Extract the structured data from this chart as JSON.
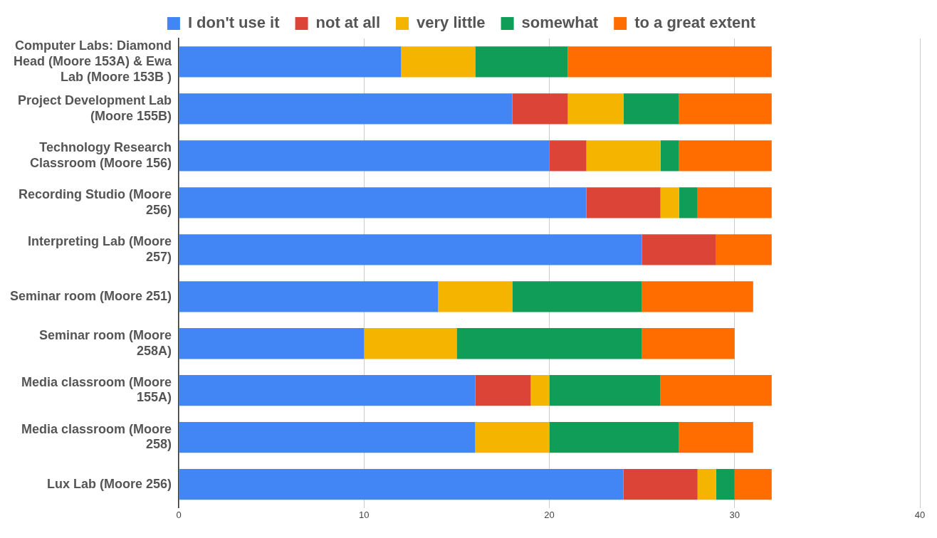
{
  "chart_data": {
    "type": "bar",
    "orientation": "horizontal",
    "stacked": true,
    "grid": "x",
    "legend": "top",
    "categories": [
      "Computer Labs: Diamond Head (Moore 153A) & Ewa Lab (Moore 153B )",
      "Project Development Lab (Moore 155B)",
      "Technology Research Classroom (Moore 156)",
      "Recording Studio (Moore 256)",
      "Interpreting Lab (Moore 257)",
      "Seminar room (Moore 251)",
      "Seminar room (Moore 258A)",
      "Media classroom (Moore 155A)",
      "Media classroom (Moore 258)",
      "Lux Lab (Moore 256)"
    ],
    "series": [
      {
        "name": "I don't use it",
        "color": "#4285f4",
        "values": [
          12,
          18,
          20,
          22,
          25,
          14,
          10,
          16,
          16,
          24
        ]
      },
      {
        "name": "not at all",
        "color": "#db4437",
        "values": [
          0,
          3,
          2,
          4,
          4,
          0,
          0,
          3,
          0,
          4
        ]
      },
      {
        "name": "very little",
        "color": "#f4b400",
        "values": [
          4,
          3,
          4,
          1,
          0,
          4,
          5,
          1,
          4,
          1
        ]
      },
      {
        "name": "somewhat",
        "color": "#0f9d58",
        "values": [
          5,
          3,
          1,
          1,
          0,
          7,
          10,
          6,
          7,
          1
        ]
      },
      {
        "name": "to a great extent",
        "color": "#ff6d01",
        "values": [
          11,
          5,
          5,
          4,
          3,
          6,
          5,
          6,
          4,
          2
        ]
      }
    ],
    "xlim": [
      0,
      40
    ],
    "xticks": [
      0,
      10,
      20,
      30,
      40
    ]
  }
}
